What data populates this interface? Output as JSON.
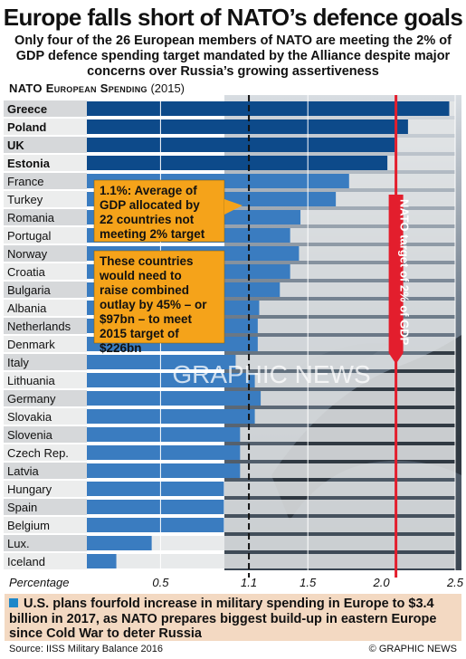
{
  "title": "Europe falls short of NATO’s defence goals",
  "subtitle": "Only four of the 26 European members of NATO are meeting the 2% of GDP defence spending target mandated by the Alliance despite major concerns over Russia’s growing assertiveness",
  "section": {
    "label": "NATO European Spending",
    "year": "(2015)"
  },
  "chart_data": {
    "type": "bar",
    "orientation": "horizontal",
    "categories": [
      "Greece",
      "Poland",
      "UK",
      "Estonia",
      "France",
      "Turkey",
      "Romania",
      "Portugal",
      "Norway",
      "Croatia",
      "Bulgaria",
      "Albania",
      "Netherlands",
      "Denmark",
      "Italy",
      "Lithuania",
      "Germany",
      "Slovakia",
      "Slovenia",
      "Czech Rep.",
      "Latvia",
      "Hungary",
      "Spain",
      "Belgium",
      "Lux.",
      "Iceland"
    ],
    "bold_categories": [
      "Greece",
      "Poland",
      "UK",
      "Estonia"
    ],
    "values": [
      2.46,
      2.18,
      2.09,
      2.04,
      1.78,
      1.69,
      1.45,
      1.38,
      1.44,
      1.38,
      1.31,
      1.17,
      1.16,
      1.16,
      1.01,
      1.14,
      1.18,
      1.14,
      1.04,
      1.04,
      1.04,
      0.93,
      0.93,
      0.93,
      0.44,
      0.2
    ],
    "xlabel": "Percentage",
    "xticks": [
      0.5,
      1.1,
      1.5,
      2.0,
      2.5
    ],
    "xlim": [
      0,
      2.5
    ],
    "average_line": 1.1,
    "target_line": 2.0,
    "target_label": "NATO target of 2% of GDP",
    "colors": {
      "bar_top": "#0d4a8a",
      "bar": "#3a7cc0",
      "target": "#e31e2d",
      "callout": "#f5a31a"
    },
    "annotations": [
      "1.1%: Average of GDP allocated by 22 countries not meeting 2% target",
      "These countries would need to raise combined outlay by 45% – or $97bn – to meet 2015 target of $226bn"
    ],
    "watermark": "GRAPHIC NEWS"
  },
  "footer": {
    "note": "U.S. plans fourfold increase in military spending in Europe to $3.4 billion in 2017, as NATO prepares biggest build-up in eastern Europe since Cold War to deter Russia",
    "source": "Source: IISS Military Balance 2016",
    "credit": "© GRAPHIC NEWS"
  }
}
